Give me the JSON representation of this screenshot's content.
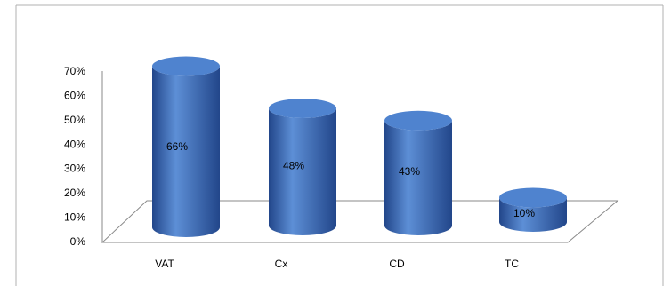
{
  "chart_data": {
    "type": "bar",
    "title": "",
    "xlabel": "",
    "ylabel": "",
    "categories": [
      "VAT",
      "Cx",
      "CD",
      "TC"
    ],
    "values": [
      66,
      48,
      43,
      10
    ],
    "value_labels": [
      "66%",
      "48%",
      "43%",
      "10%"
    ],
    "ylim": [
      0,
      70
    ],
    "yticks": [
      "0%",
      "10%",
      "20%",
      "30%",
      "40%",
      "50%",
      "60%",
      "70%"
    ],
    "grid": false,
    "legend": "none",
    "style": "3d-cylinder",
    "colors": {
      "bar": "#3a6db5",
      "bar_dark": "#22468a",
      "bar_light": "#5d8fd6",
      "bar_top": "#4f83cf",
      "axis": "#8a8a8a",
      "frame": "#b0b0b0",
      "text": "#000000"
    }
  }
}
